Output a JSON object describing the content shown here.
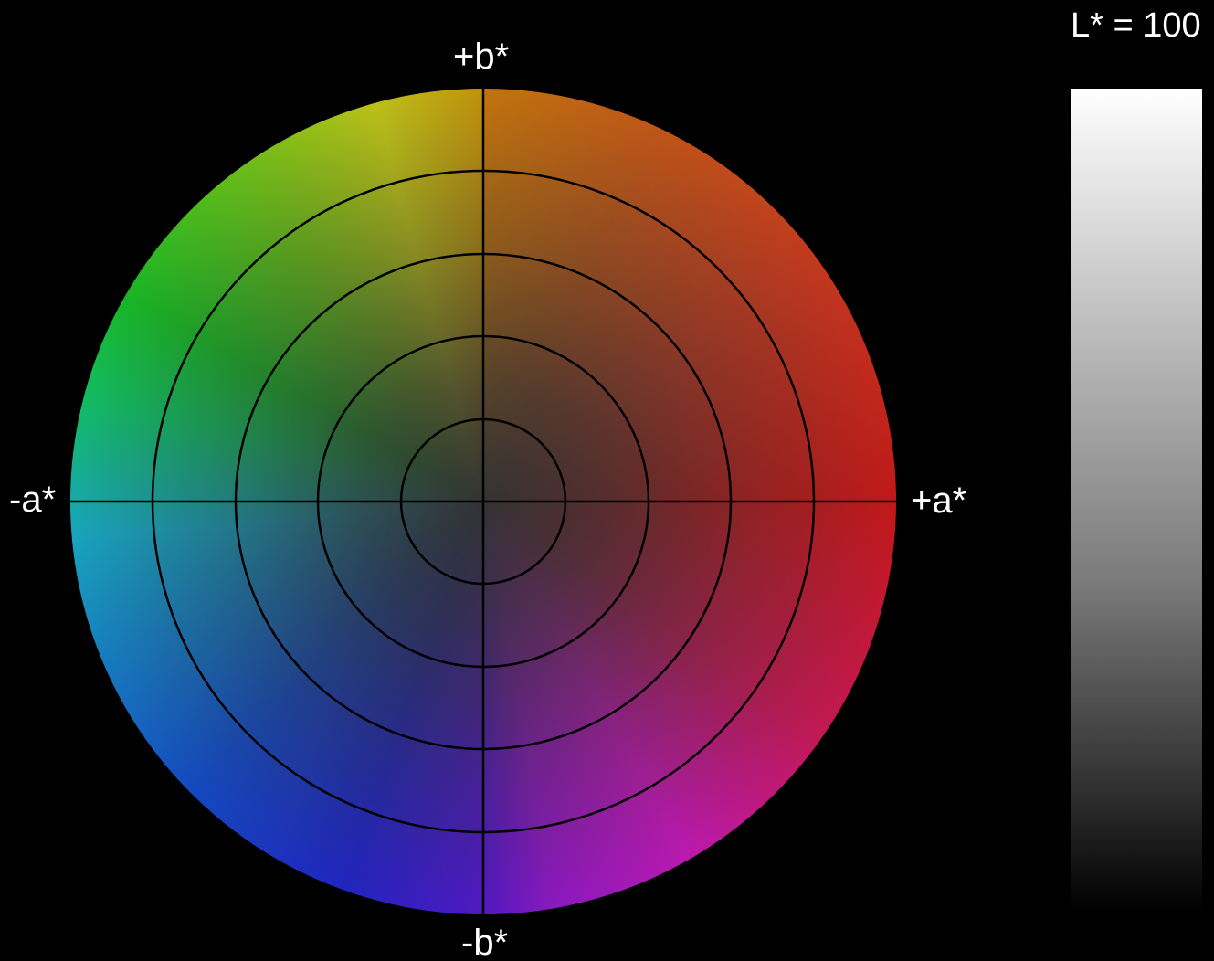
{
  "axes": {
    "positive_b": "+b*",
    "negative_b": "-b*",
    "negative_a": "-a*",
    "positive_a": "+a*"
  },
  "lightness": {
    "label": "L* = 100"
  },
  "wheel": {
    "ring_count": 4,
    "line_color": "#000000",
    "background_color": "#000000"
  },
  "icons": []
}
